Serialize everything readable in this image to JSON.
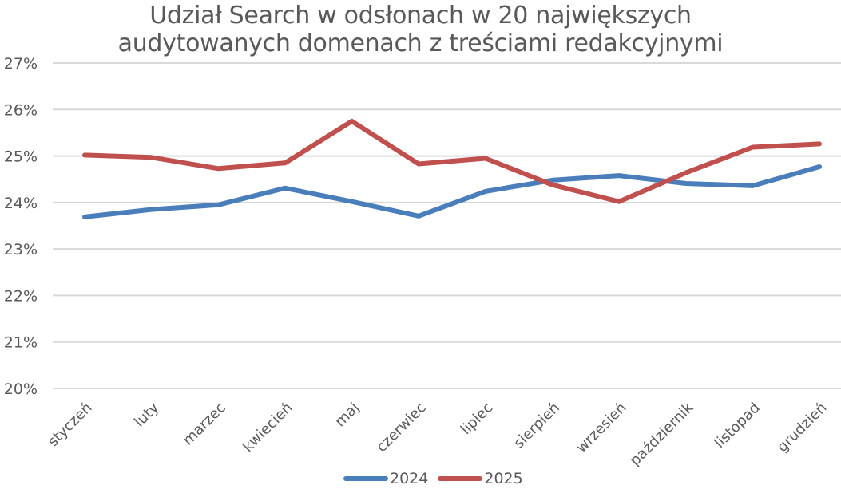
{
  "chart_data": {
    "type": "line",
    "title_lines": [
      "Udział Search w odsłonach  w 20 największych",
      "audytowanych domenach z treściami redakcyjnymi"
    ],
    "title": "Udział Search w odsłonach  w 20 największych audytowanych domenach z treściami redakcyjnymi",
    "xlabel": "",
    "ylabel": "",
    "categories": [
      "styczeń",
      "luty",
      "marzec",
      "kwiecień",
      "maj",
      "czerwiec",
      "lipiec",
      "sierpień",
      "wrzesień",
      "październik",
      "listopad",
      "grudzień"
    ],
    "series": [
      {
        "name": "2024",
        "color": "#4a7ebb",
        "values": [
          23.69,
          23.85,
          23.95,
          24.31,
          24.02,
          23.71,
          24.24,
          24.48,
          24.58,
          24.41,
          24.36,
          24.77
        ]
      },
      {
        "name": "2025",
        "color": "#c0504d",
        "values": [
          25.02,
          24.97,
          24.73,
          24.85,
          25.75,
          24.83,
          24.95,
          24.38,
          24.02,
          24.64,
          25.19,
          25.26
        ]
      }
    ],
    "ylim": [
      20,
      27
    ],
    "yticks": [
      "20%",
      "21%",
      "22%",
      "23%",
      "24%",
      "25%",
      "26%",
      "27%"
    ],
    "grid": true,
    "gridline_color": "#d9d9d9",
    "legend_position": "bottom",
    "unit": "%"
  }
}
